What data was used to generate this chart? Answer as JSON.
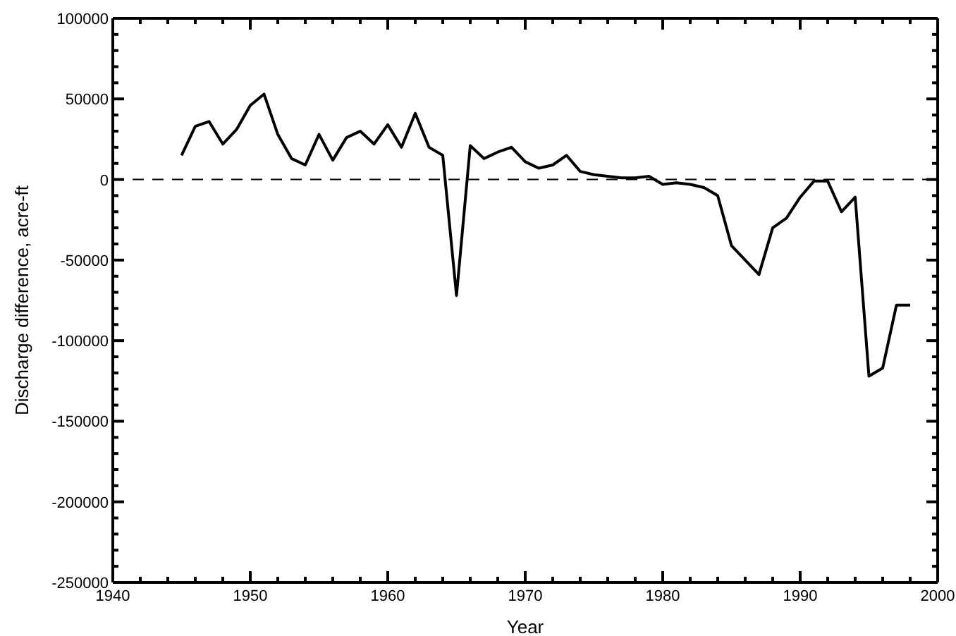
{
  "chart_data": {
    "type": "line",
    "xlabel": "Year",
    "ylabel": "Discharge difference, acre-ft",
    "x": [
      1945,
      1946,
      1947,
      1948,
      1949,
      1950,
      1951,
      1952,
      1953,
      1954,
      1955,
      1956,
      1957,
      1958,
      1959,
      1960,
      1961,
      1962,
      1963,
      1964,
      1965,
      1966,
      1967,
      1968,
      1969,
      1970,
      1971,
      1972,
      1973,
      1974,
      1975,
      1976,
      1977,
      1978,
      1979,
      1980,
      1981,
      1982,
      1983,
      1984,
      1985,
      1986,
      1987,
      1988,
      1989,
      1990,
      1991,
      1992,
      1993,
      1994,
      1995,
      1996,
      1997,
      1998
    ],
    "series": [
      {
        "color": "#000000",
        "values": [
          15000,
          33000,
          36000,
          22000,
          31000,
          46000,
          53000,
          28000,
          13000,
          9000,
          28000,
          12000,
          26000,
          30000,
          22000,
          34000,
          20000,
          41000,
          20000,
          15000,
          -72000,
          21000,
          13000,
          17000,
          20000,
          11000,
          7000,
          9000,
          15000,
          5000,
          3000,
          2000,
          1000,
          1000,
          2000,
          -3000,
          -2000,
          -3000,
          -5000,
          -10000,
          -41000,
          -50000,
          -59000,
          -30000,
          -24000,
          -11000,
          -1000,
          -1000,
          -20000,
          -11000,
          -122000,
          -117000,
          -78000,
          -78000
        ]
      }
    ],
    "xlim": [
      1940,
      2000
    ],
    "xticks": [
      1940,
      {
        "value": 1942,
        "label": null
      },
      {
        "value": 1944,
        "label": null
      },
      {
        "value": 1946,
        "label": null
      },
      {
        "value": 1948,
        "label": null
      },
      1950,
      {
        "value": 1952,
        "label": null
      },
      {
        "value": 1954,
        "label": null
      },
      {
        "value": 1956,
        "label": null
      },
      {
        "value": 1958,
        "label": null
      },
      1960,
      {
        "value": 1962,
        "label": null
      },
      {
        "value": 1964,
        "label": null
      },
      {
        "value": 1966,
        "label": null
      },
      {
        "value": 1968,
        "label": null
      },
      1970,
      {
        "value": 1972,
        "label": null
      },
      {
        "value": 1974,
        "label": null
      },
      {
        "value": 1976,
        "label": null
      },
      {
        "value": 1978,
        "label": null
      },
      1980,
      {
        "value": 1982,
        "label": null
      },
      {
        "value": 1984,
        "label": null
      },
      {
        "value": 1986,
        "label": null
      },
      {
        "value": 1988,
        "label": null
      },
      1990,
      {
        "value": 1992,
        "label": null
      },
      {
        "value": 1994,
        "label": null
      },
      {
        "value": 1996,
        "label": null
      },
      {
        "value": 1998,
        "label": null
      },
      2000
    ],
    "ylim": [
      -250000,
      100000
    ],
    "yticks": [
      -250000,
      {
        "value": -240000,
        "label": null
      },
      {
        "value": -230000,
        "label": null
      },
      {
        "value": -220000,
        "label": null
      },
      {
        "value": -210000,
        "label": null
      },
      -200000,
      {
        "value": -190000,
        "label": null
      },
      {
        "value": -180000,
        "label": null
      },
      {
        "value": -170000,
        "label": null
      },
      {
        "value": -160000,
        "label": null
      },
      -150000,
      {
        "value": -140000,
        "label": null
      },
      {
        "value": -130000,
        "label": null
      },
      {
        "value": -120000,
        "label": null
      },
      {
        "value": -110000,
        "label": null
      },
      -100000,
      {
        "value": -90000,
        "label": null
      },
      {
        "value": -80000,
        "label": null
      },
      {
        "value": -70000,
        "label": null
      },
      {
        "value": -60000,
        "label": null
      },
      -50000,
      {
        "value": -40000,
        "label": null
      },
      {
        "value": -30000,
        "label": null
      },
      {
        "value": -20000,
        "label": null
      },
      {
        "value": -10000,
        "label": null
      },
      0,
      {
        "value": 10000,
        "label": null
      },
      {
        "value": 20000,
        "label": null
      },
      {
        "value": 30000,
        "label": null
      },
      {
        "value": 40000,
        "label": null
      },
      50000,
      {
        "value": 60000,
        "label": null
      },
      {
        "value": 70000,
        "label": null
      },
      {
        "value": 80000,
        "label": null
      },
      {
        "value": 90000,
        "label": null
      },
      100000
    ],
    "ref_lines": [
      {
        "axis": "y",
        "value": 0,
        "color": "#000000",
        "line_style": "dashed"
      }
    ],
    "grid": false,
    "legend": false,
    "marker": "none",
    "line_style": "solid"
  }
}
